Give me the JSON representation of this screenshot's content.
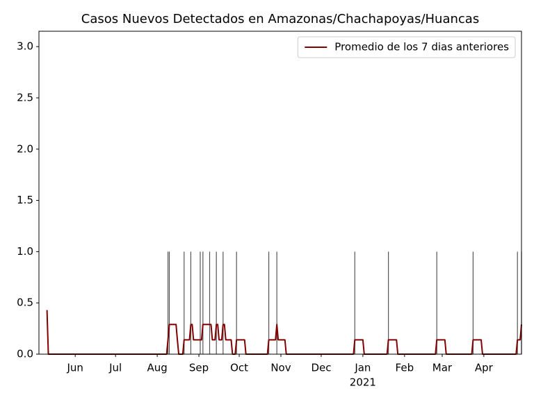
{
  "chart_data": {
    "type": "line",
    "title": "Casos Nuevos Detectados en Amazonas/Chachapoyas/Huancas",
    "xlim": [
      4,
      363
    ],
    "xticks": [
      {
        "value": 31,
        "label": "Jun"
      },
      {
        "value": 61,
        "label": "Jul"
      },
      {
        "value": 92,
        "label": "Aug"
      },
      {
        "value": 123,
        "label": "Sep"
      },
      {
        "value": 153,
        "label": "Oct"
      },
      {
        "value": 184,
        "label": "Nov"
      },
      {
        "value": 214,
        "label": "Dec"
      },
      {
        "value": 245,
        "label": "Jan"
      },
      {
        "value": 276,
        "label": "Feb"
      },
      {
        "value": 304,
        "label": "Mar"
      },
      {
        "value": 335,
        "label": "Apr"
      }
    ],
    "year_label": {
      "value": 245,
      "label": "2021"
    },
    "ylim": [
      0,
      3.15
    ],
    "yticks": [
      {
        "value": 0,
        "label": "0.0"
      },
      0.5,
      {
        "value": 1,
        "label": "1.0"
      },
      1.5,
      {
        "value": 2,
        "label": "2.0"
      },
      2.5,
      {
        "value": 3,
        "label": "3.0"
      }
    ],
    "legend": "upper right",
    "bars": {
      "color": "#555555",
      "x": [
        100,
        101,
        112,
        117,
        124,
        126,
        131,
        136,
        141,
        151,
        175,
        181,
        239,
        264,
        300,
        327,
        360,
        363
      ],
      "values": [
        1,
        1,
        1,
        1,
        1,
        1,
        1,
        1,
        1,
        1,
        1,
        1,
        1,
        1,
        1,
        1,
        1,
        1
      ]
    },
    "series": [
      {
        "name": "Promedio de los 7 dias anteriores",
        "color": "#800000",
        "x": [
          10,
          11,
          99,
          100,
          101,
          106,
          107,
          108,
          111,
          112,
          116,
          117,
          118,
          119,
          125,
          126,
          132,
          133,
          135,
          136,
          137,
          138,
          140,
          141,
          142,
          143,
          147,
          148,
          150,
          151,
          157,
          158,
          174,
          175,
          180,
          181,
          182,
          187,
          188,
          238,
          239,
          245,
          246,
          263,
          264,
          270,
          271,
          299,
          300,
          306,
          307,
          326,
          327,
          333,
          334,
          359,
          360,
          362,
          363
        ],
        "values": [
          0.43,
          0,
          0,
          0.14,
          0.29,
          0.29,
          0.14,
          0,
          0,
          0.14,
          0.14,
          0.29,
          0.29,
          0.14,
          0.14,
          0.29,
          0.29,
          0.14,
          0.14,
          0.29,
          0.29,
          0.14,
          0.14,
          0.29,
          0.29,
          0.14,
          0.14,
          0,
          0,
          0.14,
          0.14,
          0,
          0,
          0.14,
          0.14,
          0.29,
          0.14,
          0.14,
          0,
          0,
          0.14,
          0.14,
          0,
          0,
          0.14,
          0.14,
          0,
          0,
          0.14,
          0.14,
          0,
          0,
          0.14,
          0.14,
          0,
          0,
          0.14,
          0.14,
          0.29
        ]
      }
    ]
  }
}
